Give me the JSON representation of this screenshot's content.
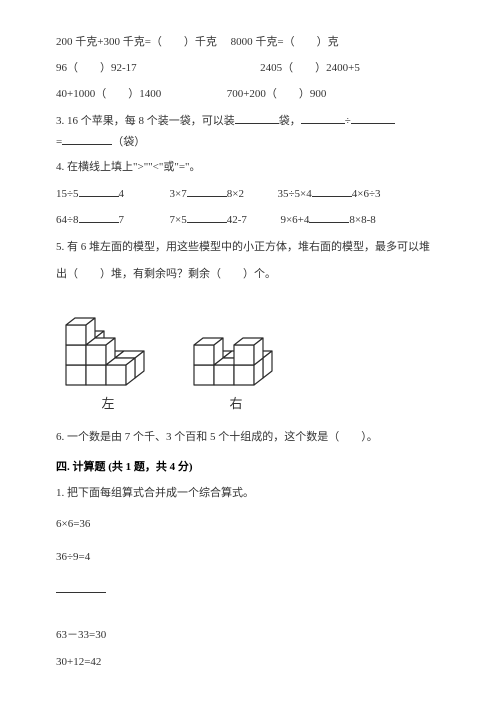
{
  "q2_l1a": "200 千克+300 千克=（　　）千克",
  "q2_l1b": "8000 千克=（　　）克",
  "q2_l2a": "96（　　）92-17",
  "q2_l2b": "2405（　　）2400+5",
  "q2_l3a": "40+1000（　　）1400",
  "q2_l3b": "700+200（　　）900",
  "q3_pre": "3. 16 个苹果，每 8 个装一袋，可以装",
  "q3_mid1": "袋，",
  "q3_mid2": "÷",
  "q3_eq": "=",
  "q3_mid3": "（袋）",
  "q4": "4. 在横线上填上\">\"\"<\"或\"=\"。",
  "q4_l1a_pre": "15÷5",
  "q4_l1a_post": "4",
  "q4_l1b_pre": "3×7",
  "q4_l1b_post": "8×2",
  "q4_l1c_pre": "35÷5×4",
  "q4_l1c_post": "4×6÷3",
  "q4_l2a_pre": "64÷8",
  "q4_l2a_post": "7",
  "q4_l2b_pre": "7×5",
  "q4_l2b_post": "42-7",
  "q4_l2c_pre": "9×6+4",
  "q4_l2c_post": "8×8-8",
  "q5_l1": "5. 有 6 堆左面的模型，用这些模型中的小正方体，堆右面的模型，最多可以堆",
  "q5_l2": "出（　　）堆，有剩余吗？剩余（　　）个。",
  "cap_left": "左",
  "cap_right": "右",
  "q6": "6. 一个数是由 7 个千、3 个百和 5 个十组成的，这个数是（　　）。",
  "sec4": "四. 计算题 (共 1 题，共 4 分)",
  "s4_q1": "1. 把下面每组算式合并成一个综合算式。",
  "calc1": "6×6=36",
  "calc2": "36÷9=4",
  "calc3": "63－33=30",
  "calc4": "30+12=42",
  "svg": {
    "stroke": "#2b2b2b",
    "strokeW": 1.2,
    "fill": "#ffffff",
    "left_w": 92,
    "left_h": 90,
    "right_w": 92,
    "right_h": 64
  }
}
